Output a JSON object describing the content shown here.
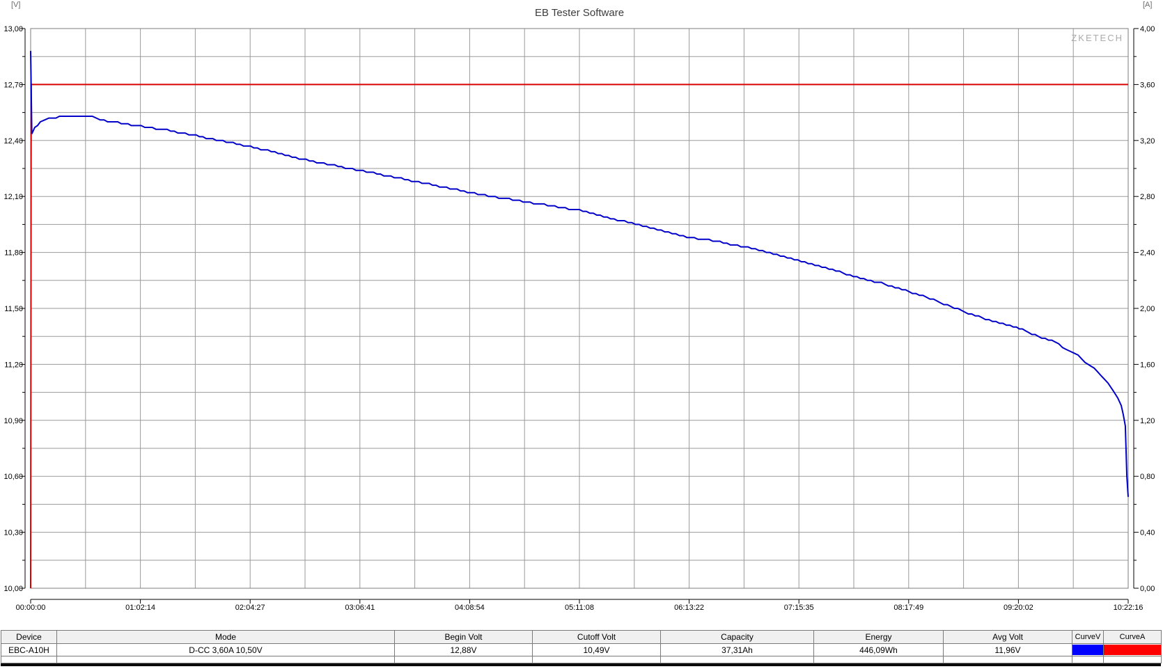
{
  "window": {
    "unit_left": "[V]",
    "unit_right": "[A]",
    "watermark": "ZKETECH"
  },
  "chart_data": {
    "type": "line",
    "title": "EB Tester Software",
    "grid": true,
    "left_axis": {
      "unit": "[V]",
      "min": 10.0,
      "max": 13.0,
      "major_step": 0.3,
      "tick_labels": [
        "13,00",
        "12,70",
        "12,40",
        "12,10",
        "11,80",
        "11,50",
        "11,20",
        "10,90",
        "10,60",
        "10,30",
        "10,00"
      ]
    },
    "right_axis": {
      "unit": "[A]",
      "min": 0.0,
      "max": 4.0,
      "major_step": 0.4,
      "tick_labels": [
        "4,00",
        "3,60",
        "3,20",
        "2,80",
        "2,40",
        "2,00",
        "1,60",
        "1,20",
        "0,80",
        "0,40",
        "0,00"
      ]
    },
    "x_axis": {
      "total_seconds": 37336,
      "tick_labels": [
        "00:00:00",
        "01:02:14",
        "02:04:27",
        "03:06:41",
        "04:08:54",
        "05:11:08",
        "06:13:22",
        "07:15:35",
        "08:17:49",
        "09:20:02",
        "10:22:16"
      ]
    },
    "series": [
      {
        "name": "CurveV",
        "unit": "V",
        "color": "#0000c8",
        "points": [
          [
            0,
            12.88
          ],
          [
            40,
            12.435
          ],
          [
            140,
            12.465
          ],
          [
            330,
            12.5
          ],
          [
            620,
            12.52
          ],
          [
            1100,
            12.53
          ],
          [
            2100,
            12.53
          ],
          [
            2500,
            12.505
          ],
          [
            3200,
            12.49
          ],
          [
            3760,
            12.475
          ],
          [
            4640,
            12.455
          ],
          [
            5630,
            12.425
          ],
          [
            6770,
            12.39
          ],
          [
            7950,
            12.35
          ],
          [
            9370,
            12.295
          ],
          [
            11190,
            12.24
          ],
          [
            13080,
            12.18
          ],
          [
            14980,
            12.12
          ],
          [
            16870,
            12.07
          ],
          [
            18670,
            12.025
          ],
          [
            20200,
            11.965
          ],
          [
            21200,
            11.925
          ],
          [
            22450,
            11.88
          ],
          [
            23330,
            11.86
          ],
          [
            24280,
            11.83
          ],
          [
            25150,
            11.8
          ],
          [
            26100,
            11.755
          ],
          [
            27040,
            11.72
          ],
          [
            27990,
            11.67
          ],
          [
            28940,
            11.635
          ],
          [
            29880,
            11.59
          ],
          [
            30830,
            11.54
          ],
          [
            31780,
            11.48
          ],
          [
            32720,
            11.43
          ],
          [
            33430,
            11.4
          ],
          [
            33740,
            11.385
          ],
          [
            34170,
            11.355
          ],
          [
            34850,
            11.32
          ],
          [
            35230,
            11.28
          ],
          [
            35630,
            11.25
          ],
          [
            35870,
            11.21
          ],
          [
            36180,
            11.18
          ],
          [
            36410,
            11.14
          ],
          [
            36650,
            11.1
          ],
          [
            36820,
            11.06
          ],
          [
            36980,
            11.02
          ],
          [
            37100,
            10.98
          ],
          [
            37170,
            10.93
          ],
          [
            37240,
            10.87
          ],
          [
            37290,
            10.6
          ],
          [
            37336,
            10.49
          ]
        ]
      },
      {
        "name": "CurveA",
        "unit": "A",
        "color": "#d80000",
        "points": [
          [
            0,
            0.0
          ],
          [
            20,
            3.6
          ],
          [
            37336,
            3.6
          ]
        ]
      }
    ]
  },
  "table": {
    "headers": [
      "Device",
      "Mode",
      "Begin Volt",
      "Cutoff Volt",
      "Capacity",
      "Energy",
      "Avg Volt",
      "CurveV",
      "CurveA"
    ],
    "row": {
      "device": "EBC-A10H",
      "mode": "D-CC  3,60A  10,50V",
      "begin_volt": "12,88V",
      "cutoff_volt": "10,49V",
      "capacity": "37,31Ah",
      "energy": "446,09Wh",
      "avg_volt": "11,96V",
      "curve_v_color": "#0000ff",
      "curve_a_color": "#ff0000"
    }
  }
}
